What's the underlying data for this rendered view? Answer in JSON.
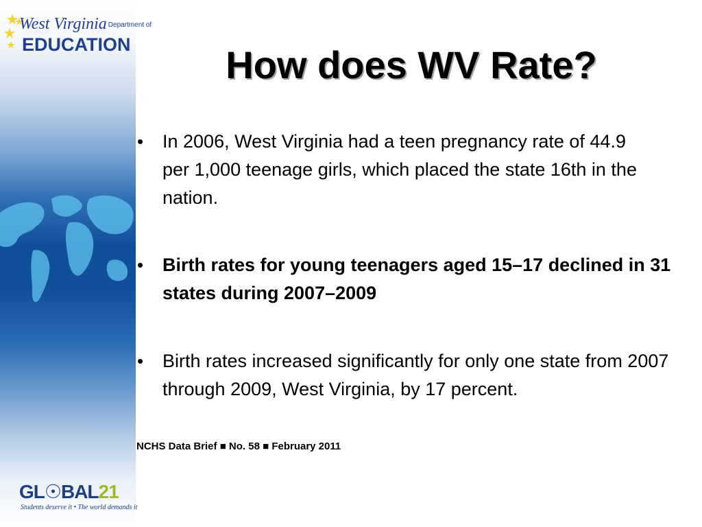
{
  "logo": {
    "state_name": "West Virginia",
    "dept_label": "Department of",
    "agency": "EDUCATION"
  },
  "slide": {
    "title": "How does WV Rate?",
    "bullets": [
      {
        "text": "In 2006, West Virginia had a teen pregnancy rate of 44.9 per 1,000 teenage girls, which placed the state 16th in the nation.",
        "bold": false
      },
      {
        "text": "Birth rates for young teenagers aged 15–17 declined in 31 states during 2007–2009",
        "bold": true
      },
      {
        "text": "Birth rates increased significantly for only one state from 2007 through 2009, West Virginia, by 17 percent.",
        "bold": false
      }
    ],
    "bullet_glyph": "•",
    "source": "NCHS Data Brief ■ No. 58 ■ February 2011"
  },
  "footer_logo": {
    "brand_main": "GL☉BAL",
    "brand_num": "21",
    "tagline": "Students deserve it • The world demands it"
  },
  "colors": {
    "brand_blue": "#1f3f8f",
    "brand_green": "#9dbb28",
    "star_yellow": "#f2d43a"
  }
}
